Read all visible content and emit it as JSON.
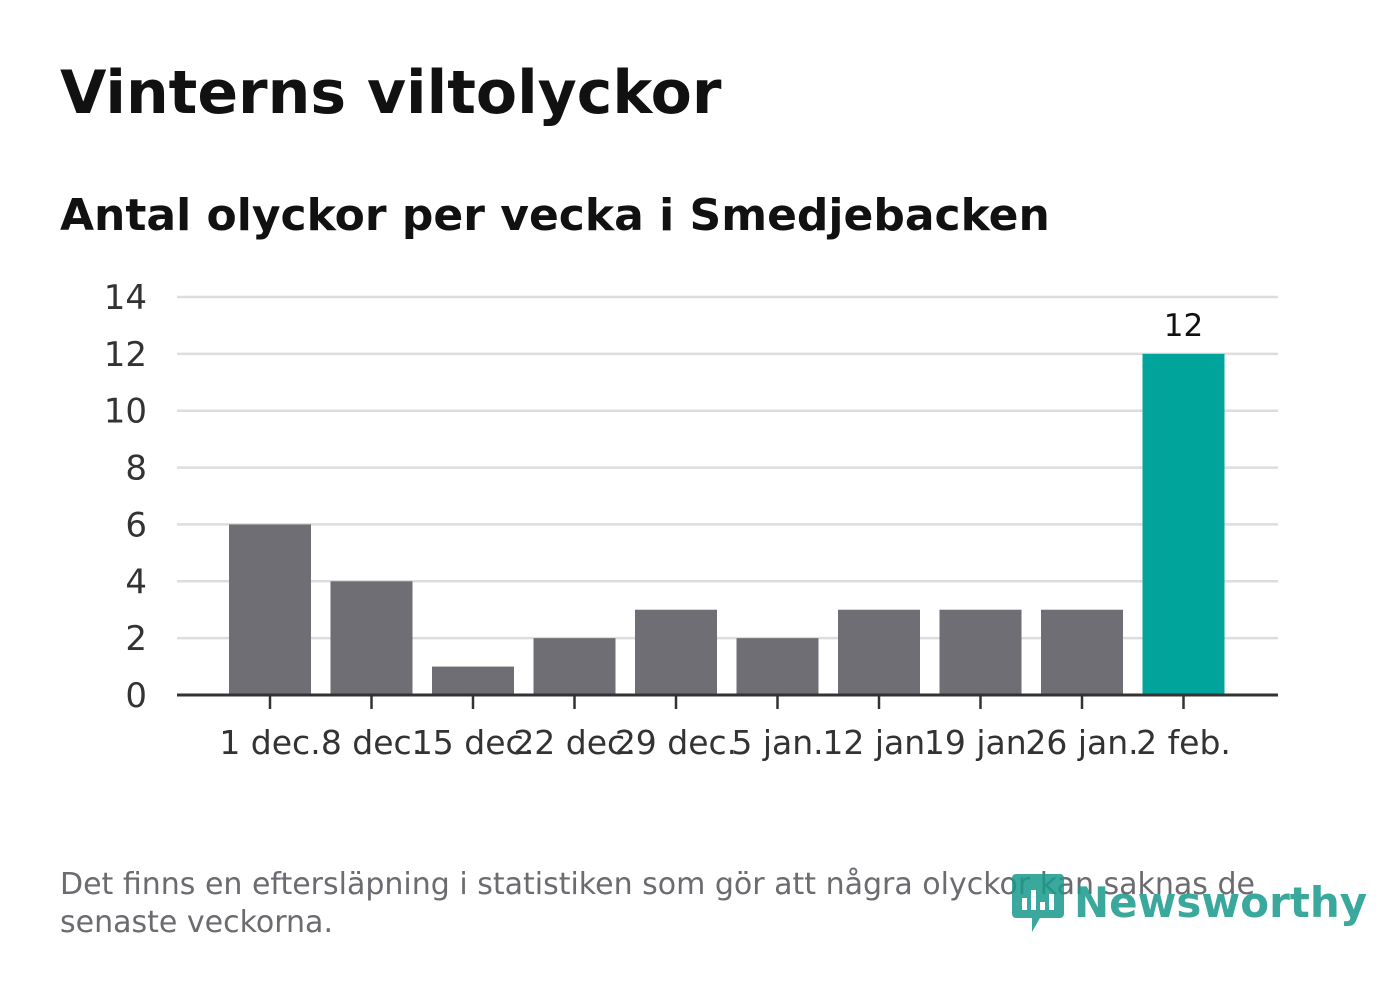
{
  "title": "Vinterns viltolyckor",
  "subtitle": "Antal olyckor per vecka i Smedjebacken",
  "footnote": "Det finns en eftersläpning i statistiken som gör att några olyckor kan saknas de senaste veckorna.",
  "brand": "Newsworthy",
  "colors": {
    "bar": "#6f6e74",
    "highlight": "#00a49a",
    "grid": "#dddddd",
    "axis": "#333333",
    "text": "#333333"
  },
  "chart_data": {
    "type": "bar",
    "title": "Vinterns viltolyckor",
    "subtitle": "Antal olyckor per vecka i Smedjebacken",
    "categories": [
      "1 dec.",
      "8 dec.",
      "15 dec.",
      "22 dec.",
      "29 dec.",
      "5 jan.",
      "12 jan.",
      "19 jan.",
      "26 jan.",
      "2 feb."
    ],
    "values": [
      6,
      4,
      1,
      2,
      3,
      2,
      3,
      3,
      3,
      12
    ],
    "highlight_index": 9,
    "data_labels": [
      {
        "index": 9,
        "text": "12"
      }
    ],
    "ylim": [
      0,
      14
    ],
    "yticks": [
      0,
      2,
      4,
      6,
      8,
      10,
      12,
      14
    ],
    "xlabel": "",
    "ylabel": "",
    "grid": true
  }
}
